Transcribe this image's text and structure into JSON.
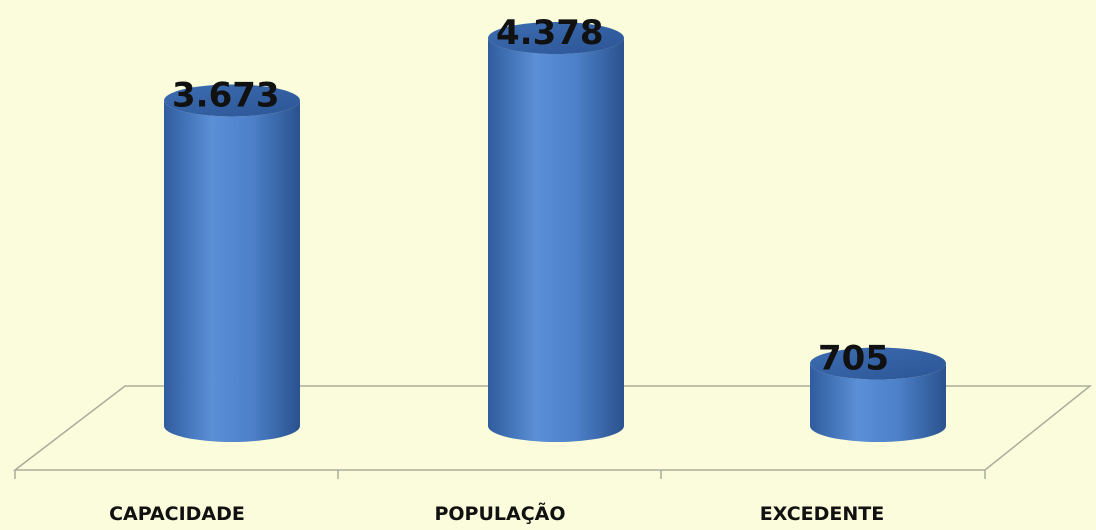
{
  "chart_data": {
    "type": "bar",
    "style": "3d-cylinder",
    "categories": [
      "CAPACIDADE",
      "POPULAÇÃO",
      "EXCEDENTE"
    ],
    "values": [
      3673,
      4378,
      705
    ],
    "data_labels": [
      "3.673",
      "4.378",
      "705"
    ],
    "title": "",
    "xlabel": "",
    "ylabel": "",
    "ylim": [
      0,
      4378
    ],
    "grid": false,
    "legend": "none"
  },
  "colors": {
    "background": "#FAFCDB",
    "bar_light": "#5B8FD6",
    "bar_mid": "#4A7CC4",
    "bar_dark": "#2C5796",
    "floor_line": "#A9AD9B"
  }
}
